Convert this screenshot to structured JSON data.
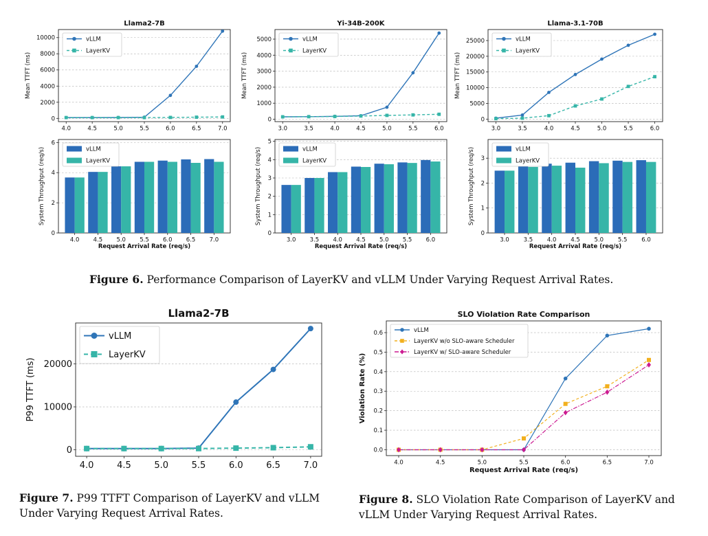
{
  "figure6": {
    "caption_label": "Figure 6.",
    "caption_text": "Performance Comparison of LayerKV and vLLM Under Varying Request Arrival Rates."
  },
  "figure7": {
    "caption_label": "Figure 7.",
    "caption_text": "P99 TTFT Comparison of LayerKV and vLLM Under Varying Request Arrival Rates."
  },
  "figure8": {
    "caption_label": "Figure 8.",
    "caption_text": "SLO Violation Rate Comparison of LayerKV and vLLM Under Varying Request Arrival Rates."
  },
  "colors": {
    "vllm": "#2b6cb8",
    "layerkv": "#36b5a8",
    "vllm_line": "#2f75b8",
    "layerkv_line": "#36b5a8",
    "slo_vllm": "#2f75b8",
    "slo_no_sched": "#f2b01e",
    "slo_sched": "#cc1a91",
    "grid": "#b0b0b0"
  },
  "chart_data": [
    {
      "id": "ttft_llama2",
      "type": "line",
      "title": "Llama2-7B",
      "xlabel": "",
      "ylabel": "Mean TTFT (ms)",
      "x": [
        4.0,
        4.5,
        5.0,
        5.5,
        6.0,
        6.5,
        7.0
      ],
      "x_ticks": [
        "4.0",
        "4.5",
        "5.0",
        "5.5",
        "6.0",
        "6.5",
        "7.0"
      ],
      "ylim": [
        -400,
        11000
      ],
      "y_ticks": [
        0,
        2000,
        4000,
        6000,
        8000,
        10000
      ],
      "grid": true,
      "legend": "top-left",
      "series": [
        {
          "name": "vLLM",
          "values": [
            100,
            100,
            110,
            150,
            2850,
            6450,
            10800
          ]
        },
        {
          "name": "LayerKV",
          "values": [
            100,
            100,
            100,
            100,
            120,
            150,
            180
          ]
        }
      ]
    },
    {
      "id": "ttft_yi",
      "type": "line",
      "title": "Yi-34B-200K",
      "xlabel": "",
      "ylabel": "Mean TTFT (ms)",
      "x": [
        3.0,
        3.5,
        4.0,
        4.5,
        5.0,
        5.5,
        6.0
      ],
      "x_ticks": [
        "3.0",
        "3.5",
        "4.0",
        "4.5",
        "5.0",
        "5.5",
        "6.0"
      ],
      "ylim": [
        -150,
        5600
      ],
      "y_ticks": [
        0,
        1000,
        2000,
        3000,
        4000,
        5000
      ],
      "grid": true,
      "legend": "top-left",
      "series": [
        {
          "name": "vLLM",
          "values": [
            150,
            160,
            180,
            220,
            750,
            2900,
            5380
          ]
        },
        {
          "name": "LayerKV",
          "values": [
            150,
            160,
            170,
            200,
            240,
            270,
            310
          ]
        }
      ]
    },
    {
      "id": "ttft_llama31",
      "type": "line",
      "title": "Llama-3.1-70B",
      "xlabel": "",
      "ylabel": "Mean TTFT (ms)",
      "x": [
        3.0,
        3.5,
        4.0,
        4.5,
        5.0,
        5.5,
        6.0
      ],
      "x_ticks": [
        "3.0",
        "3.5",
        "4.0",
        "4.5",
        "5.0",
        "5.5",
        "6.0"
      ],
      "ylim": [
        -800,
        28500
      ],
      "y_ticks": [
        0,
        5000,
        10000,
        15000,
        20000,
        25000
      ],
      "grid": true,
      "legend": "top-left",
      "series": [
        {
          "name": "vLLM",
          "values": [
            300,
            1300,
            8500,
            14200,
            19100,
            23500,
            27000
          ]
        },
        {
          "name": "LayerKV",
          "values": [
            150,
            300,
            1100,
            4200,
            6400,
            10400,
            13500
          ]
        }
      ]
    },
    {
      "id": "thr_llama2",
      "type": "bar",
      "title": "",
      "xlabel": "Request Arrival Rate (req/s)",
      "ylabel": "System Throughput (req/s)",
      "categories": [
        "4.0",
        "4.5",
        "5.0",
        "5.5",
        "6.0",
        "6.5",
        "7.0"
      ],
      "ylim": [
        0,
        6.2
      ],
      "y_ticks": [
        0,
        2,
        4,
        6
      ],
      "grid": true,
      "legend": "top-left",
      "series": [
        {
          "name": "vLLM",
          "values": [
            3.68,
            4.05,
            4.42,
            4.72,
            4.8,
            4.88,
            4.9
          ]
        },
        {
          "name": "LayerKV",
          "values": [
            3.68,
            4.05,
            4.42,
            4.72,
            4.72,
            4.65,
            4.72
          ]
        }
      ]
    },
    {
      "id": "thr_yi",
      "type": "bar",
      "title": "",
      "xlabel": "Request Arrival Rate (req/s)",
      "ylabel": "System Throughput (req/s)",
      "categories": [
        "3.0",
        "3.5",
        "4.0",
        "4.5",
        "5.0",
        "5.5",
        "6.0"
      ],
      "ylim": [
        0,
        5.1
      ],
      "y_ticks": [
        0,
        1,
        2,
        3,
        4,
        5
      ],
      "grid": true,
      "legend": "top-left",
      "series": [
        {
          "name": "vLLM",
          "values": [
            2.62,
            3.0,
            3.32,
            3.62,
            3.78,
            3.85,
            3.98
          ]
        },
        {
          "name": "LayerKV",
          "values": [
            2.62,
            3.0,
            3.32,
            3.6,
            3.75,
            3.82,
            3.9
          ]
        }
      ]
    },
    {
      "id": "thr_llama31",
      "type": "bar",
      "title": "",
      "xlabel": "Request Arrival Rate (req/s)",
      "ylabel": "System Throughput (req/s)",
      "categories": [
        "3.0",
        "3.5",
        "4.0",
        "4.5",
        "5.0",
        "5.5",
        "6.0"
      ],
      "ylim": [
        0,
        3.75
      ],
      "y_ticks": [
        0,
        1,
        2,
        3
      ],
      "grid": true,
      "legend": "top-left",
      "series": [
        {
          "name": "vLLM",
          "values": [
            2.5,
            2.72,
            2.78,
            2.82,
            2.88,
            2.9,
            2.92
          ]
        },
        {
          "name": "LayerKV",
          "values": [
            2.5,
            2.65,
            2.7,
            2.62,
            2.8,
            2.85,
            2.85
          ]
        }
      ]
    },
    {
      "id": "p99_llama2",
      "type": "line",
      "title": "Llama2-7B",
      "xlabel": "",
      "ylabel": "P99 TTFT (ms)",
      "x": [
        4.0,
        4.5,
        5.0,
        5.5,
        6.0,
        6.5,
        7.0
      ],
      "x_ticks": [
        "4.0",
        "4.5",
        "5.0",
        "5.5",
        "6.0",
        "6.5",
        "7.0"
      ],
      "ylim": [
        -1500,
        29500
      ],
      "y_ticks": [
        0,
        10000,
        20000
      ],
      "grid": true,
      "legend": "top-left",
      "series": [
        {
          "name": "vLLM",
          "values": [
            300,
            300,
            300,
            400,
            11100,
            18700,
            28200
          ]
        },
        {
          "name": "LayerKV",
          "values": [
            300,
            300,
            300,
            300,
            400,
            500,
            700
          ]
        }
      ]
    },
    {
      "id": "slo_violation",
      "type": "line",
      "title": "SLO Violation Rate Comparison",
      "xlabel": "Request Arrival Rate (req/s)",
      "ylabel": "Violation Rate (%)",
      "x": [
        4.0,
        4.5,
        5.0,
        5.5,
        6.0,
        6.5,
        7.0
      ],
      "x_ticks": [
        "4.0",
        "4.5",
        "5.0",
        "5.5",
        "6.0",
        "6.5",
        "7.0"
      ],
      "ylim": [
        -0.03,
        0.66
      ],
      "y_ticks": [
        0.0,
        0.1,
        0.2,
        0.3,
        0.4,
        0.5,
        0.6
      ],
      "grid": true,
      "legend": "top-left",
      "series": [
        {
          "name": "vLLM",
          "values": [
            0.0,
            0.0,
            0.0,
            0.0,
            0.365,
            0.585,
            0.62
          ]
        },
        {
          "name": "LayerKV w/o SLO-aware Scheduler",
          "values": [
            0.0,
            0.0,
            0.0,
            0.058,
            0.235,
            0.325,
            0.46
          ]
        },
        {
          "name": "LayerKV w/ SLO-aware Scheduler",
          "values": [
            0.0,
            0.0,
            0.0,
            0.0,
            0.19,
            0.295,
            0.435
          ]
        }
      ]
    }
  ]
}
